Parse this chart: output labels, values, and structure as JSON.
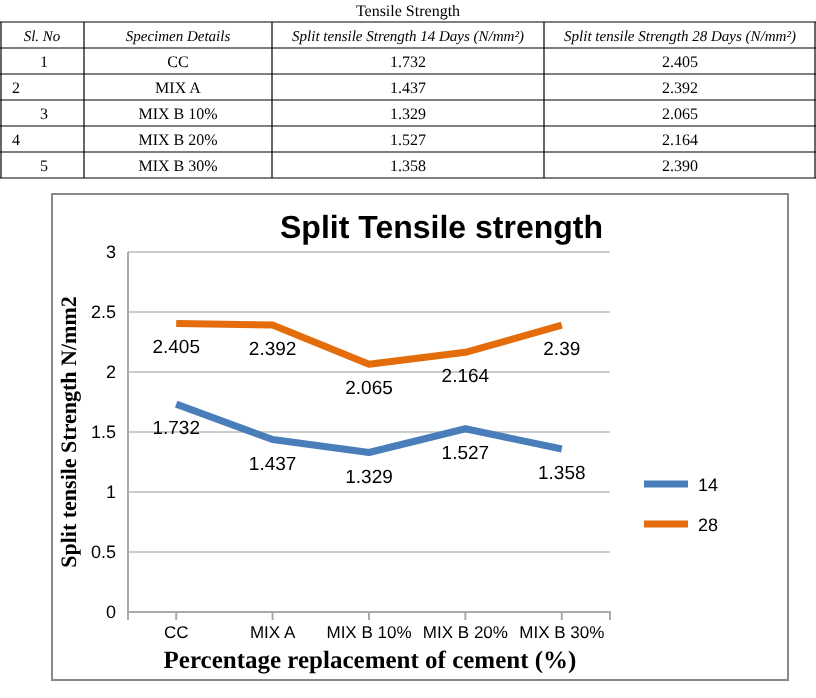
{
  "chart_data": [
    {
      "type": "other",
      "title": "Tensile Strength",
      "annotations": [
        "Sl. No",
        "Specimen Details",
        "Split tensile Strength 14 Days (N/mm²)",
        "Split tensile Strength 28 Days (N/mm²)",
        "1",
        "CC",
        "1.732",
        "2.405",
        "2",
        "MIX A",
        "1.437",
        "2.392",
        "3",
        "MIX B 10%",
        "1.329",
        "2.065",
        "4",
        "MIX B 20%",
        "1.527",
        "2.164",
        "5",
        "MIX B 30%",
        "1.358",
        "2.390"
      ]
    },
    {
      "type": "line",
      "title": "Split Tensile  strength",
      "xlabel": "Percentage replacement of cement (%)",
      "ylabel": "Split tensile  Strength N/mm2",
      "categories": [
        "CC",
        "MIX A",
        "MIX B 10%",
        "MIX B 20%",
        "MIX B 30%"
      ],
      "series": [
        {
          "name": "14",
          "color": "#4a7ebb",
          "values": [
            1.732,
            1.437,
            1.329,
            1.527,
            1.358
          ]
        },
        {
          "name": "28",
          "color": "#e46c0a",
          "values": [
            2.405,
            2.392,
            2.065,
            2.164,
            2.39
          ]
        }
      ],
      "ylim": [
        0,
        3
      ],
      "yticks": [
        0,
        0.5,
        1,
        1.5,
        2,
        2.5,
        3
      ],
      "grid": "y",
      "legend": "right",
      "data_labels": true,
      "marker": "none",
      "line_style": "solid"
    }
  ]
}
